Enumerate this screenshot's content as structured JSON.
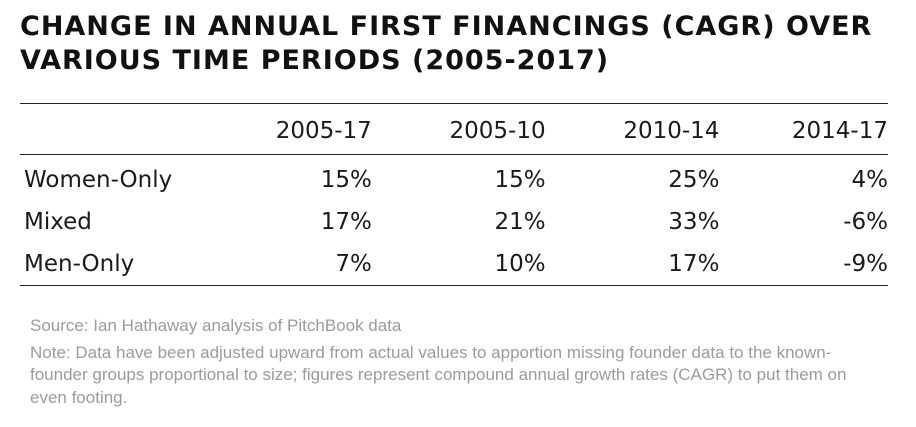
{
  "title": "Change in Annual First Financings (CAGR) over Various Time Periods (2005-2017)",
  "table": {
    "columns": [
      "",
      "2005-17",
      "2005-10",
      "2010-14",
      "2014-17"
    ],
    "rows": [
      {
        "label": "Women-Only",
        "values": [
          "15%",
          "15%",
          "25%",
          "4%"
        ]
      },
      {
        "label": "Mixed",
        "values": [
          "17%",
          "21%",
          "33%",
          "-6%"
        ]
      },
      {
        "label": "Men-Only",
        "values": [
          "7%",
          "10%",
          "17%",
          "-9%"
        ]
      }
    ]
  },
  "source": "Source: Ian Hathaway analysis of PitchBook data",
  "note": "Note: Data have been adjusted upward from actual values to apportion missing founder data to the known-founder groups proportional to size; figures represent compound annual growth rates (CAGR) to put them on even footing."
}
